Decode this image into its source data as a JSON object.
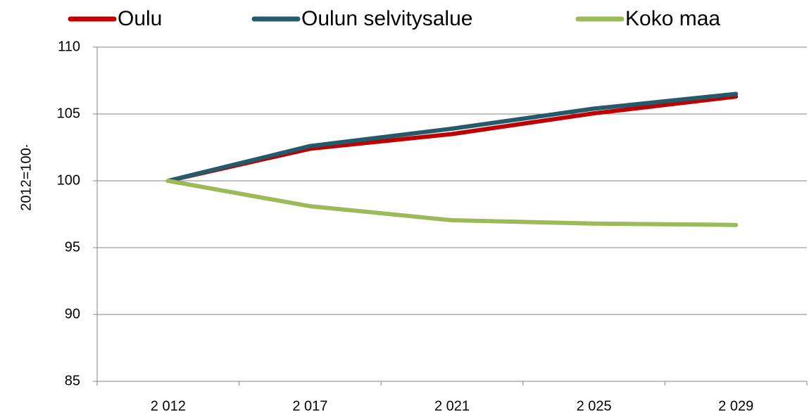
{
  "chart_data": {
    "type": "line",
    "y_label": "2012=100",
    "y_label_mark": ".",
    "categories": [
      "2 012",
      "2 017",
      "2 021",
      "2 025",
      "2 029"
    ],
    "series": [
      {
        "name": "Oulu",
        "color": "#c00000",
        "values": [
          100,
          102.4,
          103.5,
          105.05,
          106.3
        ]
      },
      {
        "name": "Oulun selvitysalue",
        "color": "#245a69",
        "values": [
          100,
          102.6,
          103.9,
          105.4,
          106.5
        ]
      },
      {
        "name": "Koko maa",
        "color": "#9bbb59",
        "values": [
          100,
          98.1,
          97.05,
          96.8,
          96.7
        ]
      }
    ],
    "ylim": [
      85,
      110
    ],
    "yticks": [
      85,
      90,
      95,
      100,
      105,
      110
    ],
    "grid": true,
    "legend": "top"
  }
}
